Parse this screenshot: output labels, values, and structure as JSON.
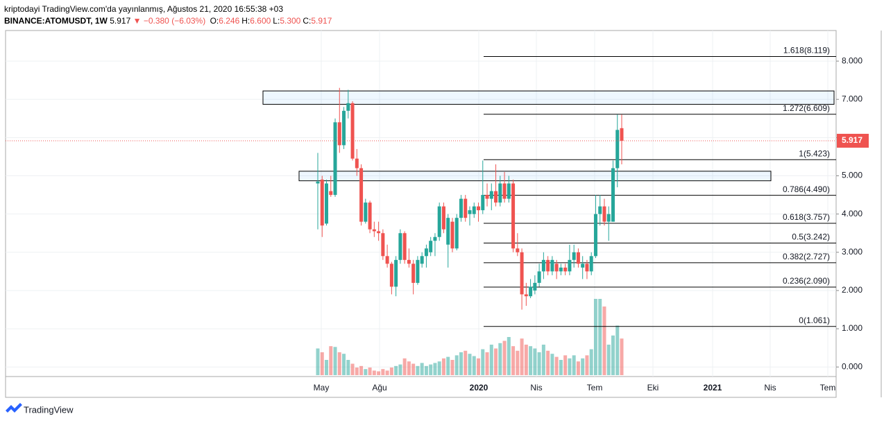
{
  "header": {
    "line1": "kriptodayi TradingView.com'da yayınlanmış, Ağustos 21, 2020 16:55:38 +03",
    "symbol": "BINANCE:ATOMUSDT, 1W",
    "change": "▼ −0.380 (−6.03%)",
    "fields": [
      {
        "key": "O:",
        "text": "6.246"
      },
      {
        "key": "H:",
        "text": "6.600"
      },
      {
        "key": "L:",
        "text": "5.300"
      },
      {
        "key": "C:",
        "text": "5.917"
      }
    ]
  },
  "footer": "TradingView",
  "chart_data": {
    "type": "candlestick",
    "ylim": [
      -0.25,
      8.8
    ],
    "yticks": [
      {
        "value": 0,
        "label": "0.000"
      },
      {
        "value": 1,
        "label": "1.000"
      },
      {
        "value": 2,
        "label": "2.000"
      },
      {
        "value": 3,
        "label": "3.000"
      },
      {
        "value": 4,
        "label": "4.000"
      },
      {
        "value": 5,
        "label": "5.000"
      },
      {
        "value": 6,
        "label": "6.000"
      },
      {
        "value": 7,
        "label": "7.000"
      },
      {
        "value": 8,
        "label": "8.000"
      }
    ],
    "xticks": [
      "May",
      "Ağu",
      "2020",
      "Nis",
      "Tem",
      "Eki",
      "2021",
      "Nis",
      "Tem"
    ],
    "grid": true,
    "up_color": "#26a69a",
    "down_color": "#ef5350",
    "last_price": 5.917,
    "candles": [
      [
        4.8,
        5.6,
        3.6,
        4.85
      ],
      [
        4.9,
        5.0,
        3.4,
        3.7
      ],
      [
        3.75,
        4.9,
        3.7,
        4.8
      ],
      [
        4.6,
        5.0,
        4.45,
        4.5
      ],
      [
        4.5,
        6.5,
        4.45,
        6.4
      ],
      [
        6.4,
        7.3,
        5.6,
        5.8
      ],
      [
        5.8,
        6.8,
        5.7,
        6.7
      ],
      [
        6.7,
        7.25,
        6.5,
        6.9
      ],
      [
        6.9,
        6.95,
        5.4,
        5.45
      ],
      [
        5.45,
        5.7,
        5.0,
        5.2
      ],
      [
        5.2,
        5.3,
        3.7,
        3.8
      ],
      [
        3.8,
        4.4,
        3.75,
        4.3
      ],
      [
        4.3,
        4.35,
        3.5,
        3.6
      ],
      [
        3.6,
        3.8,
        3.4,
        3.55
      ],
      [
        3.55,
        3.8,
        3.3,
        3.5
      ],
      [
        3.5,
        3.6,
        2.8,
        2.9
      ],
      [
        2.9,
        3.2,
        2.6,
        2.7
      ],
      [
        2.7,
        2.75,
        1.9,
        2.1
      ],
      [
        2.1,
        2.9,
        1.85,
        2.8
      ],
      [
        2.8,
        3.6,
        2.7,
        3.5
      ],
      [
        3.5,
        3.55,
        2.7,
        2.8
      ],
      [
        2.8,
        3.1,
        2.6,
        2.7
      ],
      [
        2.7,
        2.8,
        1.9,
        2.2
      ],
      [
        2.2,
        2.9,
        2.15,
        2.8
      ],
      [
        2.7,
        3.0,
        2.6,
        2.9
      ],
      [
        2.9,
        3.2,
        2.6,
        3.1
      ],
      [
        3.0,
        3.4,
        2.9,
        3.3
      ],
      [
        3.3,
        3.5,
        2.9,
        3.4
      ],
      [
        3.4,
        4.3,
        3.3,
        4.2
      ],
      [
        4.2,
        4.3,
        3.5,
        3.6
      ],
      [
        3.2,
        4.0,
        2.6,
        3.9
      ],
      [
        3.8,
        3.9,
        3.0,
        3.1
      ],
      [
        3.1,
        4.0,
        3.05,
        3.9
      ],
      [
        3.9,
        4.5,
        3.8,
        4.4
      ],
      [
        4.4,
        4.5,
        3.8,
        3.9
      ],
      [
        4.0,
        4.2,
        3.7,
        4.1
      ],
      [
        4.0,
        4.3,
        3.9,
        4.2
      ],
      [
        4.2,
        4.3,
        3.8,
        4.1
      ],
      [
        4.1,
        5.4,
        4.0,
        4.5
      ],
      [
        4.5,
        4.8,
        4.2,
        4.4
      ],
      [
        4.4,
        4.8,
        4.1,
        4.6
      ],
      [
        4.6,
        5.3,
        4.2,
        4.3
      ],
      [
        4.3,
        5.0,
        4.2,
        4.8
      ],
      [
        4.8,
        5.1,
        4.3,
        4.4
      ],
      [
        4.4,
        5.0,
        4.3,
        4.8
      ],
      [
        4.8,
        4.9,
        3.0,
        3.1
      ],
      [
        3.1,
        3.5,
        2.9,
        3.0
      ],
      [
        3.0,
        3.1,
        1.5,
        1.9
      ],
      [
        1.9,
        2.2,
        1.6,
        1.85
      ],
      [
        1.85,
        2.3,
        1.8,
        2.1
      ],
      [
        2.0,
        2.4,
        1.9,
        2.2
      ],
      [
        2.2,
        2.7,
        2.1,
        2.5
      ],
      [
        2.5,
        3.0,
        2.3,
        2.8
      ],
      [
        2.8,
        2.9,
        2.4,
        2.5
      ],
      [
        2.5,
        2.9,
        2.4,
        2.8
      ],
      [
        2.7,
        2.8,
        2.3,
        2.5
      ],
      [
        2.5,
        2.7,
        2.4,
        2.6
      ],
      [
        2.6,
        2.7,
        2.4,
        2.5
      ],
      [
        2.5,
        3.2,
        2.4,
        2.8
      ],
      [
        2.8,
        3.2,
        2.6,
        3.0
      ],
      [
        3.0,
        3.1,
        2.6,
        2.7
      ],
      [
        2.6,
        2.9,
        2.3,
        2.7
      ],
      [
        2.7,
        2.8,
        2.3,
        2.5
      ],
      [
        2.5,
        3.0,
        2.4,
        2.9
      ],
      [
        2.9,
        4.5,
        2.85,
        4.0
      ],
      [
        4.0,
        4.5,
        3.7,
        4.2
      ],
      [
        4.2,
        4.4,
        3.7,
        3.8
      ],
      [
        3.8,
        4.2,
        3.3,
        4.0
      ],
      [
        3.8,
        5.4,
        3.8,
        5.2
      ],
      [
        5.2,
        6.6,
        4.7,
        6.2
      ],
      [
        6.246,
        6.6,
        5.3,
        5.917
      ]
    ],
    "volume": [
      35,
      30,
      20,
      38,
      37,
      30,
      28,
      20,
      15,
      10,
      12,
      8,
      10,
      6,
      5,
      8,
      6,
      10,
      12,
      14,
      22,
      18,
      15,
      12,
      16,
      12,
      14,
      16,
      18,
      22,
      24,
      20,
      26,
      30,
      32,
      28,
      25,
      22,
      34,
      30,
      40,
      35,
      42,
      45,
      50,
      38,
      32,
      48,
      40,
      38,
      35,
      30,
      40,
      32,
      28,
      24,
      20,
      26,
      22,
      26,
      18,
      22,
      26,
      34,
      100,
      100,
      90,
      40,
      52,
      65,
      48
    ],
    "vlim": [
      0,
      100
    ],
    "fib_levels": [
      {
        "value": 8.119,
        "label": "1.618(8.119)"
      },
      {
        "value": 6.609,
        "label": "1.272(6.609)"
      },
      {
        "value": 5.423,
        "label": "1(5.423)"
      },
      {
        "value": 4.49,
        "label": "0.786(4.490)"
      },
      {
        "value": 3.757,
        "label": "0.618(3.757)"
      },
      {
        "value": 3.242,
        "label": "0.5(3.242)"
      },
      {
        "value": 2.727,
        "label": "0.382(2.727)"
      },
      {
        "value": 2.09,
        "label": "0.236(2.090)"
      },
      {
        "value": 1.061,
        "label": "0(1.061)"
      }
    ],
    "zones": [
      [
        6.87,
        7.22
      ],
      [
        4.87,
        5.12
      ]
    ]
  }
}
